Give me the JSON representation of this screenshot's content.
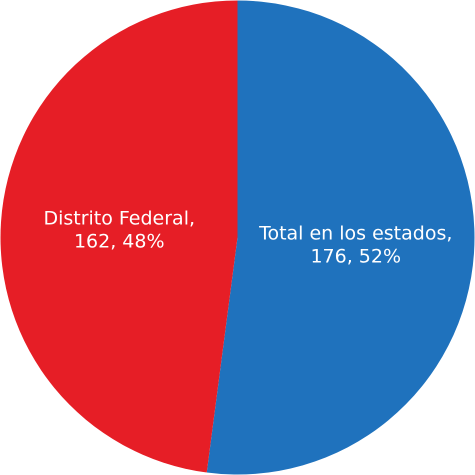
{
  "chart_data": {
    "type": "pie",
    "categories": [
      "Total en los estados,",
      "Distrito Federal,"
    ],
    "values": [
      176,
      162
    ],
    "value_labels": [
      "176, 52%",
      "162, 48%"
    ],
    "colors": [
      "#1f72bd",
      "#e61e26"
    ]
  }
}
